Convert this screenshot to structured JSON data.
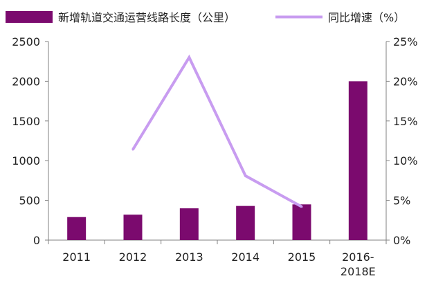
{
  "chart_data": {
    "type": "bar",
    "categories": [
      "2011",
      "2012",
      "2013",
      "2014",
      "2015",
      "2016-2018E"
    ],
    "category_lines": [
      [
        "2011"
      ],
      [
        "2012"
      ],
      [
        "2013"
      ],
      [
        "2014"
      ],
      [
        "2015"
      ],
      [
        "2016-",
        "2018E"
      ]
    ],
    "series": [
      {
        "name": "新增轨道交通运营线路长度（公里）",
        "type": "bar",
        "axis": "left",
        "color": "#7b0a6e",
        "values": [
          290,
          320,
          400,
          430,
          450,
          2000
        ]
      },
      {
        "name": "同比增速（%）",
        "type": "line",
        "axis": "right",
        "color": "#c89cf0",
        "values": [
          null,
          11.4,
          23.0,
          8.1,
          4.2,
          null
        ]
      }
    ],
    "y_left": {
      "min": 0,
      "max": 2500,
      "ticks": [
        0,
        500,
        1000,
        1500,
        2000,
        2500
      ]
    },
    "y_right": {
      "min": 0,
      "max": 25,
      "ticks": [
        "0%",
        "5%",
        "10%",
        "15%",
        "20%",
        "25%"
      ]
    },
    "legend_position": "top",
    "grid": false
  }
}
